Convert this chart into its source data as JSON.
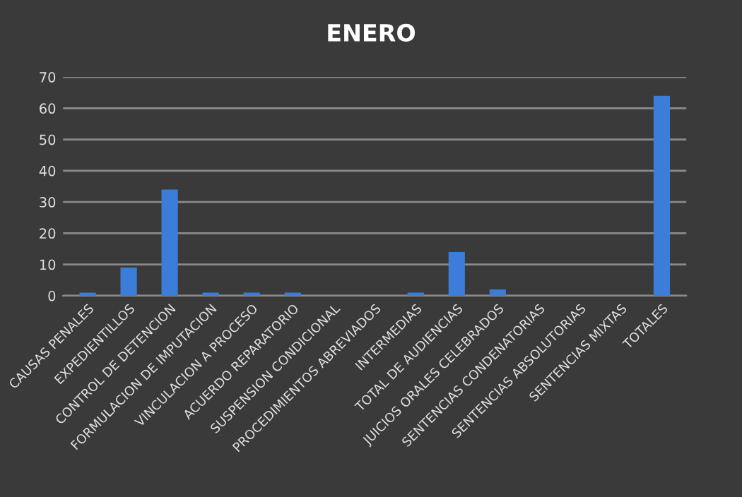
{
  "chart_data": {
    "type": "bar",
    "title": "ENERO",
    "categories": [
      "CAUSAS PENALES",
      "EXPEDIENTILLOS",
      "CONTROL DE DETENCION",
      "FORMULACION DE IMPUTACION",
      "VINCULACION A PROCESO",
      "ACUERDO REPARATORIO",
      "SUSPENSION CONDICIONAL",
      "PROCEDIMIENTOS ABREVIADOS",
      "INTERMEDIAS",
      "TOTAL DE AUDIENCIAS",
      "JUICIOS ORALES CELEBRADOS",
      "SENTENCIAS CONDENATORIAS",
      "SENTENCIAS ABSOLUTORIAS",
      "SENTENCIAS MIXTAS",
      "TOTALES"
    ],
    "values": [
      1,
      9,
      34,
      1,
      1,
      1,
      0,
      0,
      1,
      14,
      2,
      0,
      0,
      0,
      64
    ],
    "color": "#3b7dd8",
    "ylim": [
      0,
      70
    ],
    "yticks": [
      0,
      10,
      20,
      30,
      40,
      50,
      60,
      70
    ],
    "grid": "y"
  }
}
